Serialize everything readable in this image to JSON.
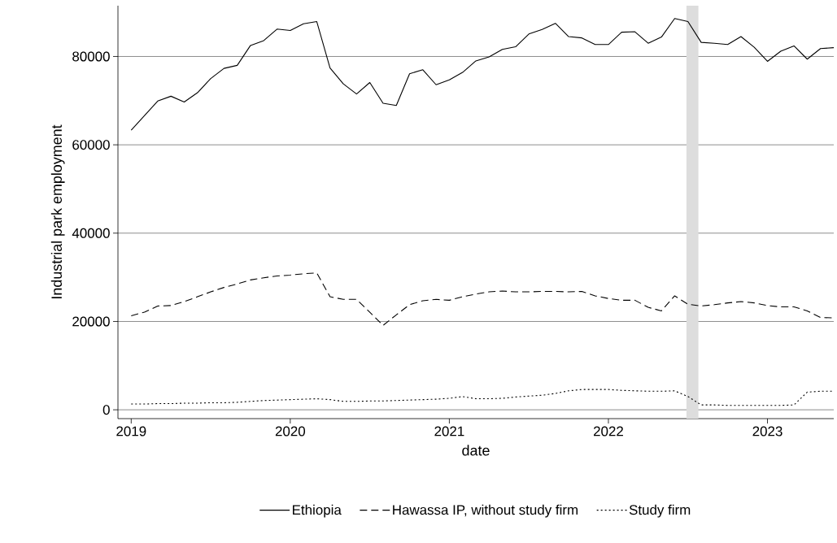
{
  "chart_data": {
    "type": "line",
    "xlabel": "date",
    "ylabel": "Industrial park employment",
    "x": [
      "2019-01",
      "2019-02",
      "2019-03",
      "2019-04",
      "2019-05",
      "2019-06",
      "2019-07",
      "2019-08",
      "2019-09",
      "2019-10",
      "2019-11",
      "2019-12",
      "2020-01",
      "2020-02",
      "2020-03",
      "2020-04",
      "2020-05",
      "2020-06",
      "2020-07",
      "2020-08",
      "2020-09",
      "2020-10",
      "2020-11",
      "2020-12",
      "2021-01",
      "2021-02",
      "2021-03",
      "2021-04",
      "2021-05",
      "2021-06",
      "2021-07",
      "2021-08",
      "2021-09",
      "2021-10",
      "2021-11",
      "2021-12",
      "2022-01",
      "2022-02",
      "2022-03",
      "2022-04",
      "2022-05",
      "2022-06",
      "2022-07",
      "2022-08",
      "2022-09",
      "2022-10",
      "2022-11",
      "2022-12",
      "2023-01",
      "2023-02",
      "2023-03",
      "2023-04",
      "2023-05",
      "2023-06"
    ],
    "series": [
      {
        "name": "Ethiopia",
        "color": "#000000",
        "line_style": "solid",
        "values": [
          63300,
          66600,
          69900,
          71000,
          69700,
          71800,
          75000,
          77300,
          78000,
          82500,
          83600,
          86200,
          85900,
          87400,
          87900,
          77400,
          73800,
          71500,
          74100,
          69400,
          68900,
          76100,
          77000,
          73600,
          74700,
          76400,
          79000,
          79900,
          81600,
          82200,
          85100,
          86100,
          87500,
          84500,
          84200,
          82700,
          82700,
          85500,
          85600,
          83000,
          84400,
          88600,
          87900,
          83200,
          83000,
          82700,
          84500,
          82100,
          78900,
          81200,
          82400,
          79400,
          81800,
          82000
        ]
      },
      {
        "name": "Hawassa IP, without study firm",
        "color": "#000000",
        "line_style": "dashed",
        "values": [
          21300,
          22100,
          23500,
          23600,
          24500,
          25600,
          26700,
          27700,
          28500,
          29400,
          29900,
          30300,
          30500,
          30800,
          31000,
          25600,
          25000,
          25000,
          22100,
          19100,
          21500,
          23800,
          24700,
          25000,
          24800,
          25600,
          26200,
          26700,
          26900,
          26700,
          26700,
          26800,
          26800,
          26700,
          26800,
          25800,
          25200,
          24800,
          24800,
          23200,
          22400,
          25800,
          23900,
          23500,
          23800,
          24200,
          24500,
          24200,
          23600,
          23300,
          23300,
          22400,
          20900,
          20800
        ]
      },
      {
        "name": "Study firm",
        "color": "#000000",
        "line_style": "dotted",
        "values": [
          1300,
          1300,
          1400,
          1400,
          1500,
          1500,
          1600,
          1600,
          1700,
          1900,
          2100,
          2200,
          2300,
          2400,
          2500,
          2300,
          1900,
          1900,
          2000,
          2000,
          2100,
          2200,
          2300,
          2400,
          2600,
          3000,
          2500,
          2500,
          2600,
          2900,
          3100,
          3300,
          3700,
          4300,
          4600,
          4600,
          4600,
          4400,
          4300,
          4200,
          4200,
          4300,
          3000,
          1100,
          1100,
          1000,
          1000,
          1000,
          1000,
          1000,
          1100,
          4000,
          4200,
          4200
        ]
      }
    ],
    "xlim": [
      "2018-12",
      "2023-06"
    ],
    "xticks": [
      "2019",
      "2020",
      "2021",
      "2022",
      "2023"
    ],
    "ylim": [
      -2000,
      91500
    ],
    "yticks": [
      0,
      20000,
      40000,
      60000,
      80000
    ],
    "grid": "y",
    "legend": "bottom",
    "marker": "none",
    "bands": [
      {
        "axis": "x",
        "from": "2022-06-28",
        "to": "2022-07-25",
        "color": "#dddddd"
      }
    ]
  }
}
